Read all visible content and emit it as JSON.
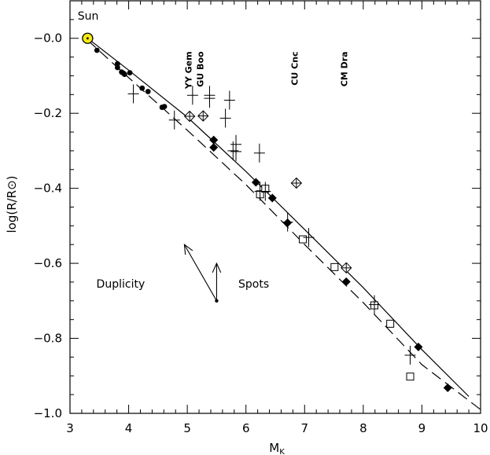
{
  "chart_data": {
    "type": "scatter",
    "title": "",
    "xlabel": "M",
    "xlabel_sub": "K",
    "ylabel": "log(R/R⊙)",
    "xlim": [
      3,
      10
    ],
    "ylim": [
      -1.0,
      0.1
    ],
    "xticks": [
      3,
      4,
      5,
      6,
      7,
      8,
      9,
      10
    ],
    "yticks": [
      0.0,
      -0.2,
      -0.4,
      -0.6,
      -0.8,
      -1.0
    ],
    "ytick_labels": [
      "−0.0",
      "−0.2",
      "−0.4",
      "−0.6",
      "−0.8",
      "−1.0"
    ],
    "grid": false,
    "series": [
      {
        "marker": "sun",
        "label": "Sun",
        "points": [
          [
            3.3,
            0.0
          ]
        ]
      },
      {
        "marker": "filled-circle",
        "points": [
          [
            3.46,
            -0.032
          ],
          [
            3.81,
            -0.068
          ],
          [
            3.81,
            -0.078
          ],
          [
            3.88,
            -0.09
          ],
          [
            3.91,
            -0.093
          ],
          [
            3.93,
            -0.096
          ],
          [
            4.02,
            -0.092
          ],
          [
            4.23,
            -0.133
          ],
          [
            4.33,
            -0.142
          ],
          [
            4.57,
            -0.184
          ],
          [
            4.61,
            -0.182
          ]
        ]
      },
      {
        "marker": "filled-diamond",
        "points": [
          [
            5.45,
            -0.271
          ],
          [
            5.45,
            -0.291
          ],
          [
            6.17,
            -0.384
          ],
          [
            6.45,
            -0.426
          ],
          [
            6.71,
            -0.492
          ],
          [
            7.71,
            -0.649
          ],
          [
            8.94,
            -0.823
          ],
          [
            9.44,
            -0.932
          ]
        ]
      },
      {
        "marker": "open-square",
        "points": [
          [
            6.24,
            -0.416
          ],
          [
            6.33,
            -0.401
          ],
          [
            6.97,
            -0.536
          ],
          [
            7.51,
            -0.61
          ],
          [
            8.19,
            -0.712
          ],
          [
            8.46,
            -0.761
          ],
          [
            8.8,
            -0.902
          ]
        ]
      },
      {
        "marker": "crossed-diamond",
        "points": [
          [
            5.04,
            -0.208
          ],
          [
            5.27,
            -0.207
          ],
          [
            6.86,
            -0.386
          ],
          [
            7.71,
            -0.612
          ]
        ]
      },
      {
        "marker": "cross-errorbar",
        "points": [
          [
            4.08,
            -0.148
          ],
          [
            4.78,
            -0.218
          ],
          [
            5.09,
            -0.152
          ],
          [
            5.38,
            -0.152
          ],
          [
            5.38,
            -0.16
          ],
          [
            5.72,
            -0.165
          ],
          [
            5.65,
            -0.213
          ],
          [
            5.78,
            -0.3
          ],
          [
            5.83,
            -0.283
          ],
          [
            5.83,
            -0.302
          ],
          [
            6.23,
            -0.306
          ],
          [
            6.24,
            -0.408
          ],
          [
            6.33,
            -0.408
          ],
          [
            6.71,
            -0.49
          ],
          [
            7.07,
            -0.531
          ],
          [
            8.19,
            -0.71
          ],
          [
            8.8,
            -0.845
          ]
        ]
      }
    ],
    "curves": [
      {
        "style": "solid",
        "points": [
          [
            3.3,
            0.0
          ],
          [
            4.0,
            -0.085
          ],
          [
            5.0,
            -0.21
          ],
          [
            6.0,
            -0.355
          ],
          [
            7.0,
            -0.51
          ],
          [
            8.0,
            -0.665
          ],
          [
            9.0,
            -0.83
          ],
          [
            9.8,
            -0.955
          ]
        ]
      },
      {
        "style": "dashed",
        "points": [
          [
            3.3,
            -0.005
          ],
          [
            4.0,
            -0.105
          ],
          [
            5.0,
            -0.245
          ],
          [
            6.0,
            -0.39
          ],
          [
            7.0,
            -0.55
          ],
          [
            8.0,
            -0.705
          ],
          [
            9.0,
            -0.87
          ],
          [
            10.0,
            -0.99
          ]
        ]
      }
    ],
    "annotations": [
      {
        "text": "Sun",
        "x": 3.13,
        "y": 0.05,
        "rotate": false
      },
      {
        "text": "YY Gem",
        "x": 5.07,
        "y": -0.035,
        "rotate": true
      },
      {
        "text": "GU Boo",
        "x": 5.27,
        "y": -0.035,
        "rotate": true
      },
      {
        "text": "CU Cnc",
        "x": 6.88,
        "y": -0.035,
        "rotate": true
      },
      {
        "text": "CM Dra",
        "x": 7.73,
        "y": -0.035,
        "rotate": true
      },
      {
        "text": "Duplicity",
        "x": 3.45,
        "y": -0.665,
        "rotate": false
      },
      {
        "text": "Spots",
        "x": 5.87,
        "y": -0.665,
        "rotate": false
      }
    ],
    "arrows": {
      "origin": [
        5.5,
        -0.7
      ],
      "duplicity_tip": [
        4.95,
        -0.55
      ],
      "spots_tip": [
        5.5,
        -0.6
      ]
    },
    "colors": {
      "sun_fill": "#f5ea18",
      "ink": "#000000"
    }
  }
}
